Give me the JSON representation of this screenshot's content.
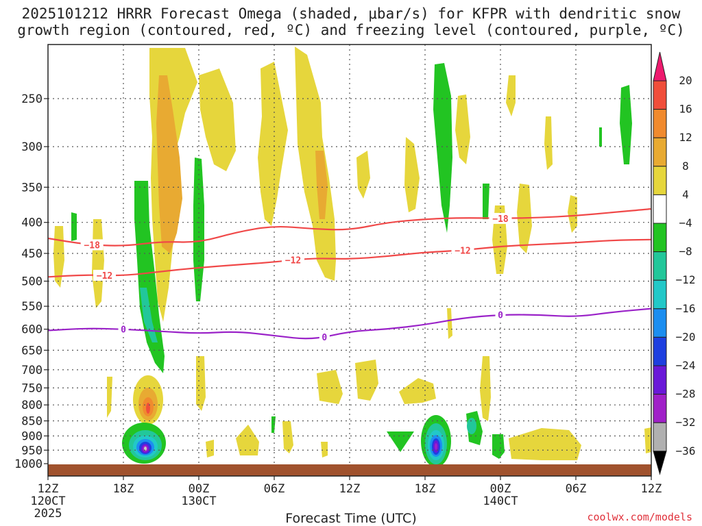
{
  "title": {
    "line1": "2025101212 HRRR Forecast Omega (shaded, μbar/s) for KFPR with dendritic snow",
    "line2": "growth region (contoured, red, ºC) and freezing level (contoured, purple, ºC)"
  },
  "credit": "coolwx.com/models",
  "chart_data": {
    "type": "contour-time-height",
    "title": "2025101212 HRRR Forecast Omega (shaded, μbar/s) for KFPR with dendritic snow growth region (contoured, red, ºC) and freezing level (contoured, purple, ºC)",
    "xlabel": "Forecast Time (UTC)",
    "ylabel": "",
    "xlim_hours": [
      0,
      48
    ],
    "ylim_hpa": [
      1000,
      200
    ],
    "grid": true,
    "y_ticks": [
      250,
      300,
      350,
      400,
      450,
      500,
      550,
      600,
      650,
      700,
      750,
      800,
      850,
      900,
      950,
      1000
    ],
    "x_ticks": [
      {
        "hour": 0,
        "label": "12Z",
        "sub": "120CT",
        "year": "2025"
      },
      {
        "hour": 6,
        "label": "18Z",
        "sub": "",
        "year": ""
      },
      {
        "hour": 12,
        "label": "00Z",
        "sub": "130CT",
        "year": ""
      },
      {
        "hour": 18,
        "label": "06Z",
        "sub": "",
        "year": ""
      },
      {
        "hour": 24,
        "label": "12Z",
        "sub": "",
        "year": ""
      },
      {
        "hour": 30,
        "label": "18Z",
        "sub": "",
        "year": ""
      },
      {
        "hour": 36,
        "label": "00Z",
        "sub": "140CT",
        "year": ""
      },
      {
        "hour": 42,
        "label": "06Z",
        "sub": "",
        "year": ""
      },
      {
        "hour": 48,
        "label": "12Z",
        "sub": "",
        "year": ""
      }
    ],
    "colorbar": {
      "labels": [
        "20",
        "16",
        "12",
        "8",
        "4",
        "−4",
        "−8",
        "−12",
        "−16",
        "−20",
        "−24",
        "−28",
        "−32",
        "−36"
      ],
      "colors": [
        "#ee1a6e",
        "#f04e3a",
        "#f08a2e",
        "#e8aa32",
        "#e6d63c",
        "#ffffff",
        "#22c422",
        "#22c79a",
        "#22c8c8",
        "#1c8ef0",
        "#1e3fe0",
        "#6a18d8",
        "#a020c8",
        "#b0b0b0",
        "#000000"
      ]
    },
    "omega_features": [
      {
        "sign": "pos",
        "value": 4,
        "hour": 9.0,
        "p": 280
      },
      {
        "sign": "pos",
        "value": 8,
        "hour": 9.8,
        "p": 350
      },
      {
        "sign": "pos",
        "value": 16,
        "hour": 8.5,
        "p": 800
      },
      {
        "sign": "neg",
        "value": -32,
        "hour": 8.0,
        "p": 945
      },
      {
        "sign": "neg",
        "value": -8,
        "hour": 7.8,
        "p": 520
      },
      {
        "sign": "neg",
        "value": -8,
        "hour": 12.0,
        "p": 450
      },
      {
        "sign": "pos",
        "value": 4,
        "hour": 20.5,
        "p": 300
      },
      {
        "sign": "pos",
        "value": 8,
        "hour": 22.5,
        "p": 400
      },
      {
        "sign": "neg",
        "value": -32,
        "hour": 31.0,
        "p": 940
      },
      {
        "sign": "neg",
        "value": -8,
        "hour": 31.5,
        "p": 280
      },
      {
        "sign": "neg",
        "value": -8,
        "hour": 35.0,
        "p": 940
      },
      {
        "sign": "neg",
        "value": -8,
        "hour": 46.5,
        "p": 270
      },
      {
        "sign": "pos",
        "value": 4,
        "hour": 40.5,
        "p": 940
      }
    ],
    "contours": [
      {
        "name": "-18",
        "color": "#f04848",
        "label_hours": [
          3.5,
          36.0
        ],
        "hours": [
          0,
          3,
          6,
          9,
          12,
          15,
          18,
          21,
          24,
          27,
          30,
          33,
          36,
          39,
          42,
          45,
          48
        ],
        "p": [
          425,
          435,
          438,
          430,
          432,
          415,
          405,
          410,
          412,
          400,
          395,
          393,
          394,
          393,
          390,
          385,
          380
        ]
      },
      {
        "name": "-12",
        "color": "#f04848",
        "label_hours": [
          4.5,
          19.5,
          33.0
        ],
        "hours": [
          0,
          3,
          6,
          9,
          12,
          15,
          18,
          21,
          24,
          27,
          30,
          33,
          36,
          39,
          42,
          45,
          48
        ],
        "p": [
          492,
          488,
          490,
          482,
          475,
          470,
          465,
          458,
          460,
          455,
          448,
          445,
          438,
          435,
          432,
          428,
          427
        ]
      },
      {
        "name": "0",
        "color": "#9a22c8",
        "label_hours": [
          6.0,
          22.0,
          36.0
        ],
        "hours": [
          0,
          3,
          6,
          9,
          12,
          15,
          18,
          21,
          24,
          27,
          30,
          33,
          36,
          39,
          42,
          45,
          48
        ],
        "p": [
          603,
          598,
          600,
          605,
          610,
          605,
          615,
          625,
          605,
          600,
          590,
          575,
          568,
          568,
          573,
          562,
          555
        ]
      }
    ]
  }
}
